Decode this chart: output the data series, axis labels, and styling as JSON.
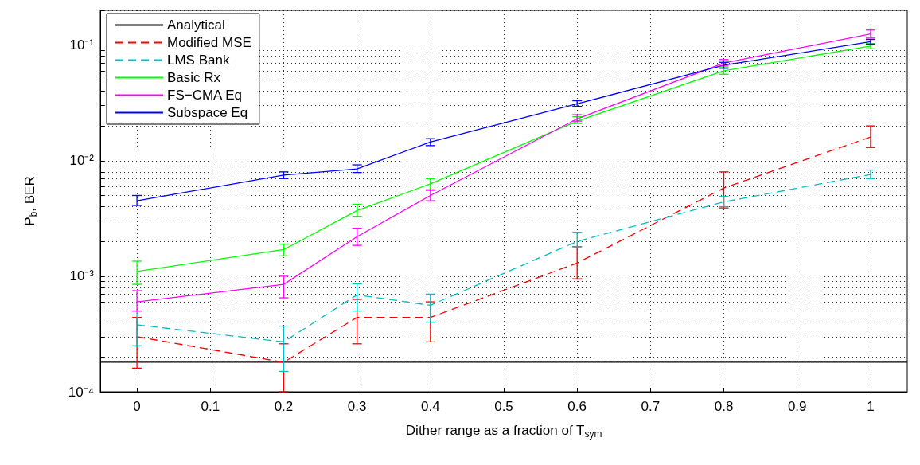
{
  "chart_data": {
    "type": "line",
    "xlabel": "Dither range as a fraction of T$_{sym}$",
    "ylabel": "P$_{b}$, BER",
    "log": "y",
    "grid": true,
    "legend": "top left",
    "x": [
      0,
      0.2,
      0.3,
      0.4,
      0.6,
      0.8,
      1
    ],
    "xlim": [
      -0.05,
      1.05
    ],
    "xticks": [
      0,
      0.1,
      0.2,
      0.3,
      0.4,
      0.5,
      0.6,
      0.7,
      0.8,
      0.9,
      1
    ],
    "ylim": [
      0.0001,
      0.2
    ],
    "yticks": [
      {
        "value": 0.0001,
        "label": "10⁻⁴"
      },
      {
        "value": 0.0002,
        "label": null
      },
      {
        "value": 0.0003,
        "label": null
      },
      {
        "value": 0.0004,
        "label": null
      },
      {
        "value": 0.0005,
        "label": null
      },
      {
        "value": 0.0006,
        "label": null
      },
      {
        "value": 0.0007,
        "label": null
      },
      {
        "value": 0.0008,
        "label": null
      },
      {
        "value": 0.0009,
        "label": null
      },
      {
        "value": 0.001,
        "label": "10⁻³"
      },
      {
        "value": 0.002,
        "label": null
      },
      {
        "value": 0.003,
        "label": null
      },
      {
        "value": 0.004,
        "label": null
      },
      {
        "value": 0.005,
        "label": null
      },
      {
        "value": 0.006,
        "label": null
      },
      {
        "value": 0.007,
        "label": null
      },
      {
        "value": 0.008,
        "label": null
      },
      {
        "value": 0.009,
        "label": null
      },
      {
        "value": 0.01,
        "label": "10⁻²"
      },
      {
        "value": 0.02,
        "label": null
      },
      {
        "value": 0.03,
        "label": null
      },
      {
        "value": 0.04,
        "label": null
      },
      {
        "value": 0.05,
        "label": null
      },
      {
        "value": 0.06,
        "label": null
      },
      {
        "value": 0.07,
        "label": null
      },
      {
        "value": 0.08,
        "label": null
      },
      {
        "value": 0.09,
        "label": null
      },
      {
        "value": 0.1,
        "label": "10⁻¹"
      },
      {
        "value": 0.2,
        "label": null
      }
    ],
    "series": [
      {
        "name": "Analytical",
        "color": "#000000",
        "line_style": "solid",
        "x": [
          -0.05,
          1.05
        ],
        "values": [
          0.00018,
          0.00018
        ]
      },
      {
        "name": "Modified MSE",
        "color": "#ff0000",
        "line_style": "dashed",
        "values": [
          0.0003,
          0.00018,
          0.00044,
          0.00044,
          0.0013,
          0.0058,
          0.016
        ],
        "errors": [
          [
            0.00016,
            0.00044
          ],
          [
            0.0001,
            0.00026
          ],
          [
            0.00026,
            0.00063
          ],
          [
            0.00027,
            0.0006
          ],
          [
            0.00095,
            0.0018
          ],
          [
            0.0039,
            0.008
          ],
          [
            0.013,
            0.02
          ]
        ]
      },
      {
        "name": "LMS Bank",
        "color": "#00bfbf",
        "line_style": "dashed",
        "values": [
          0.00038,
          0.00027,
          0.00069,
          0.00056,
          0.002,
          0.0044,
          0.0076
        ],
        "errors": [
          [
            0.00025,
            0.0005
          ],
          [
            0.00015,
            0.00037
          ],
          [
            0.0005,
            0.00086
          ],
          [
            0.0004,
            0.0007
          ],
          [
            0.0018,
            0.0024
          ],
          [
            0.004,
            0.0049
          ],
          [
            0.007,
            0.0083
          ]
        ]
      },
      {
        "name": "Basic Rx",
        "color": "#00ff00",
        "line_style": "solid",
        "values": [
          0.0011,
          0.0017,
          0.0037,
          0.0063,
          0.022,
          0.06,
          0.098
        ],
        "errors": [
          [
            0.00085,
            0.00135
          ],
          [
            0.0015,
            0.0019
          ],
          [
            0.0033,
            0.0042
          ],
          [
            0.0055,
            0.007
          ],
          [
            0.021,
            0.024
          ],
          [
            0.056,
            0.064
          ],
          [
            0.093,
            0.103
          ]
        ]
      },
      {
        "name": "FS−CMA Eq",
        "color": "#ff00ff",
        "line_style": "solid",
        "values": [
          0.0006,
          0.00085,
          0.0022,
          0.005,
          0.023,
          0.07,
          0.125
        ],
        "errors": [
          [
            0.0005,
            0.00075
          ],
          [
            0.00065,
            0.001
          ],
          [
            0.00185,
            0.0026
          ],
          [
            0.0045,
            0.0056
          ],
          [
            0.022,
            0.025
          ],
          [
            0.066,
            0.075
          ],
          [
            0.115,
            0.135
          ]
        ]
      },
      {
        "name": "Subspace Eq",
        "color": "#0000ff",
        "line_style": "solid",
        "values": [
          0.0045,
          0.0075,
          0.0085,
          0.0145,
          0.031,
          0.067,
          0.107
        ],
        "errors": [
          [
            0.0041,
            0.005
          ],
          [
            0.007,
            0.008
          ],
          [
            0.0079,
            0.0092
          ],
          [
            0.0135,
            0.0155
          ],
          [
            0.0295,
            0.033
          ],
          [
            0.063,
            0.071
          ],
          [
            0.102,
            0.112
          ]
        ]
      }
    ]
  }
}
